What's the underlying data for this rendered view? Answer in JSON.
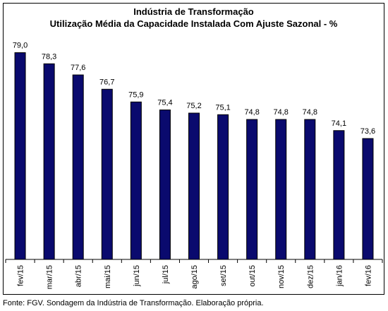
{
  "chart_data": {
    "type": "bar",
    "title": "Indústria de Transformação",
    "subtitle": "Utilização Média da Capacidade Instalada Com Ajuste Sazonal - %",
    "categories": [
      "fev/15",
      "mar/15",
      "abr/15",
      "mai/15",
      "jun/15",
      "jul/15",
      "ago/15",
      "set/15",
      "out/15",
      "nov/15",
      "dez/15",
      "jan/16",
      "fev/16"
    ],
    "values": [
      79.0,
      78.3,
      77.6,
      76.7,
      75.9,
      75.4,
      75.2,
      75.1,
      74.8,
      74.8,
      74.8,
      74.1,
      73.6
    ],
    "value_labels": [
      "79,0",
      "78,3",
      "77,6",
      "76,7",
      "75,9",
      "75,4",
      "75,2",
      "75,1",
      "74,8",
      "74,8",
      "74,8",
      "74,1",
      "73,6"
    ],
    "ylim": [
      66,
      80
    ],
    "xlabel": "",
    "ylabel": "",
    "grid": false,
    "legend": "none",
    "colors": {
      "bar_fill": "#0a0a6e",
      "bar_stroke": "#000000"
    }
  },
  "source": "Fonte: FGV. Sondagem da Indústria de Transformação. Elaboração própria."
}
